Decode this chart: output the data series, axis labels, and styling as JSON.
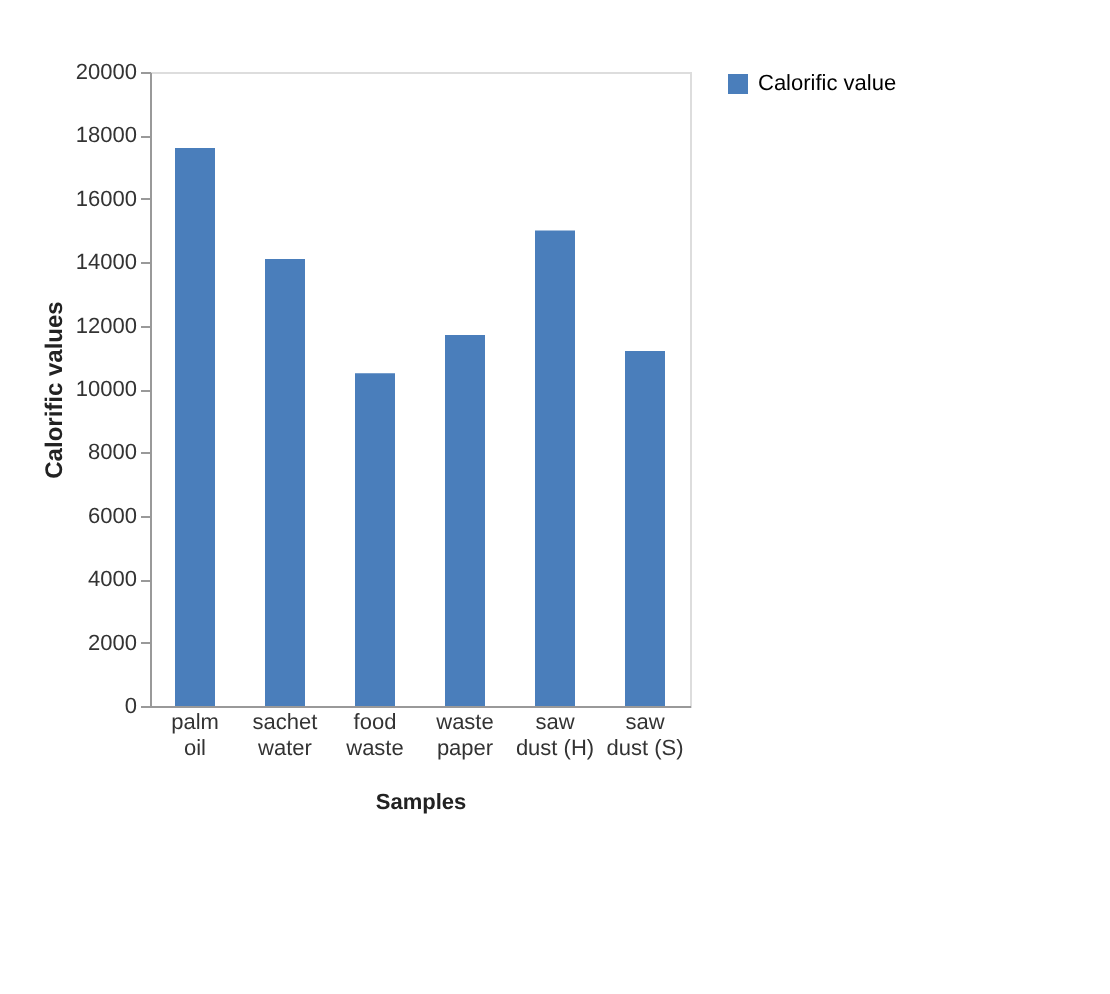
{
  "chart_data": {
    "type": "bar",
    "xlabel": "Samples",
    "ylabel": "Calorific values",
    "categories": [
      "palm oil",
      "sachet water",
      "food waste",
      "waste paper",
      "saw dust (H)",
      "saw dust (S)"
    ],
    "series": [
      {
        "name": "Calorific value",
        "color": "#4a7ebb",
        "values": [
          17600,
          14100,
          10500,
          11700,
          15000,
          11200
        ]
      }
    ],
    "ylim": [
      0,
      20000
    ],
    "yticks": [
      0,
      2000,
      4000,
      6000,
      8000,
      10000,
      12000,
      14000,
      16000,
      18000,
      20000
    ],
    "grid": false,
    "legend": "right"
  }
}
